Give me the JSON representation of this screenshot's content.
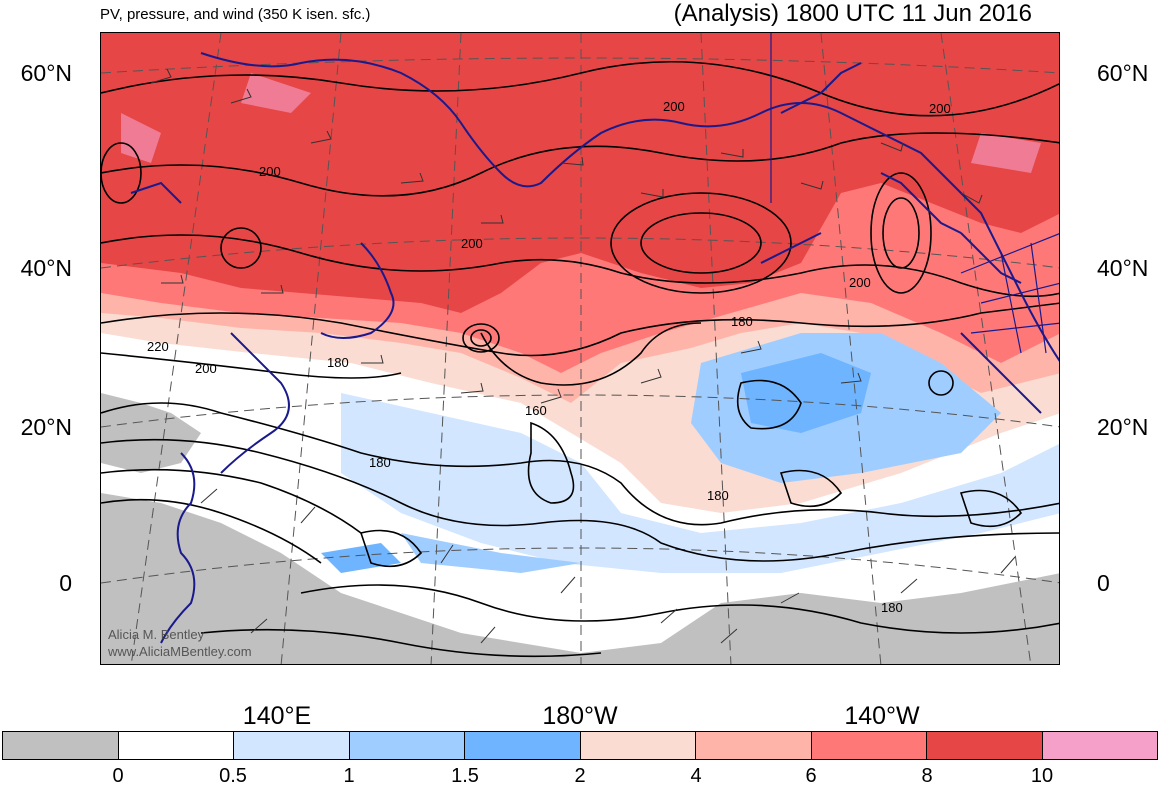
{
  "header": {
    "subtitle": "PV, pressure, and wind (350 K isen. sfc.)",
    "title": "(Analysis) 1800 UTC 11 Jun 2016"
  },
  "axes": {
    "lat_labels": [
      "60°N",
      "40°N",
      "20°N",
      "0"
    ],
    "lon_labels": [
      "140°E",
      "180°W",
      "140°W"
    ]
  },
  "contour_labels": [
    "200",
    "200",
    "200",
    "200",
    "200",
    "220",
    "200",
    "180",
    "180",
    "160",
    "180",
    "180",
    "180"
  ],
  "credit": {
    "line1": "Alicia M. Bentley",
    "line2": "www.AliciaMBentley.com"
  },
  "colorbar": {
    "colors": [
      "#c0c0c0",
      "#ffffff",
      "#d2e6ff",
      "#a0cdff",
      "#6eb4ff",
      "#fadcd2",
      "#ffb4aa",
      "#ff7878",
      "#e64646",
      "#f5a0c8"
    ],
    "labels": [
      "0",
      "0.5",
      "1",
      "1.5",
      "2",
      "4",
      "6",
      "8",
      "10"
    ]
  },
  "colors": {
    "coastline": "#1a1a8c",
    "contour": "#000000",
    "graticule": "#555555"
  }
}
